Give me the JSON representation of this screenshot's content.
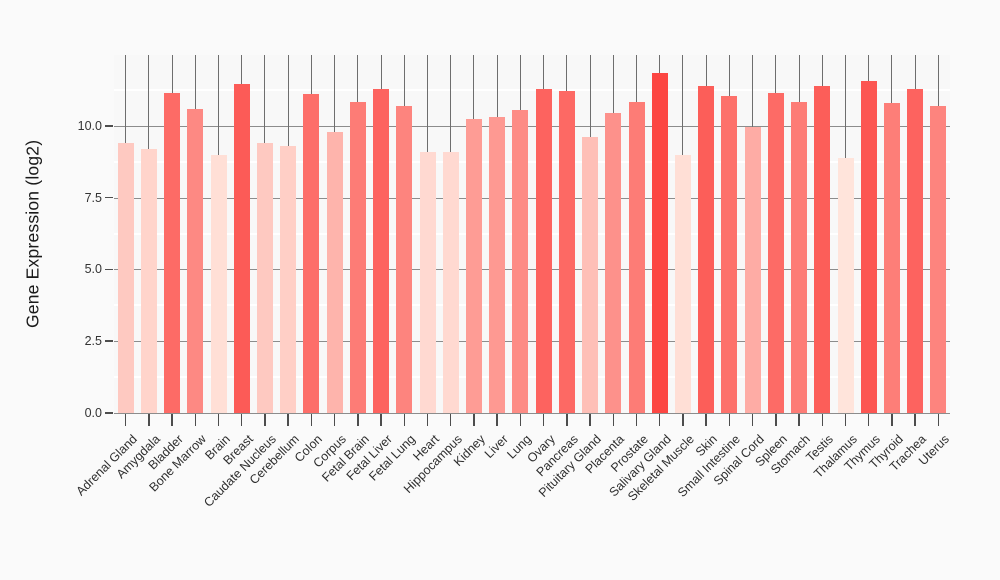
{
  "chart_data": {
    "type": "bar",
    "title": "",
    "xlabel": "",
    "ylabel": "Gene Expression (log2)",
    "categories": [
      "Adrenal Gland",
      "Amygdala",
      "Bladder",
      "Bone Marrow",
      "Brain",
      "Breast",
      "Caudate Nucleus",
      "Cerebellum",
      "Colon",
      "Corpus",
      "Fetal Brain",
      "Fetal Liver",
      "Fetal Lung",
      "Heart",
      "Hippocampus",
      "Kidney",
      "Liver",
      "Lung",
      "Ovary",
      "Pancreas",
      "Pituitary Gland",
      "Placenta",
      "Prostate",
      "Salivary Gland",
      "Skeletal Muscle",
      "Skin",
      "Small Intestine",
      "Spinal Cord",
      "Spleen",
      "Stomach",
      "Testis",
      "Thalamus",
      "Thymus",
      "Thyroid",
      "Trachea",
      "Uterus"
    ],
    "values": [
      9.4,
      9.2,
      11.15,
      10.6,
      9.0,
      11.45,
      9.4,
      9.3,
      11.1,
      9.8,
      10.85,
      11.3,
      10.7,
      9.1,
      9.1,
      10.25,
      10.3,
      10.55,
      11.3,
      11.2,
      9.6,
      10.45,
      10.85,
      11.85,
      9.0,
      11.4,
      11.05,
      9.95,
      11.15,
      10.85,
      11.4,
      8.9,
      11.55,
      10.8,
      11.3,
      10.7
    ],
    "ylim": [
      0,
      12.47
    ],
    "y_major_ticks": [
      0.0,
      2.5,
      5.0,
      7.5,
      10.0
    ],
    "y_tick_labels": [
      "0.0",
      "2.5",
      "5.0",
      "7.5",
      "10.0"
    ],
    "y_minor_ticks": [
      1.25,
      3.75,
      6.25,
      8.75,
      11.25
    ],
    "grid": {
      "major_horizontal_color": "#8c8c8c",
      "minor_horizontal_color": "#ffffff",
      "vertical_category_color": "#6e6e6e",
      "tick_color": "#4d4d4d"
    },
    "color_scale": {
      "low": "#FFE4DB",
      "high": "#FC4642",
      "domain": [
        8.9,
        11.85
      ]
    },
    "legend": "none",
    "background": "#fafafa"
  }
}
